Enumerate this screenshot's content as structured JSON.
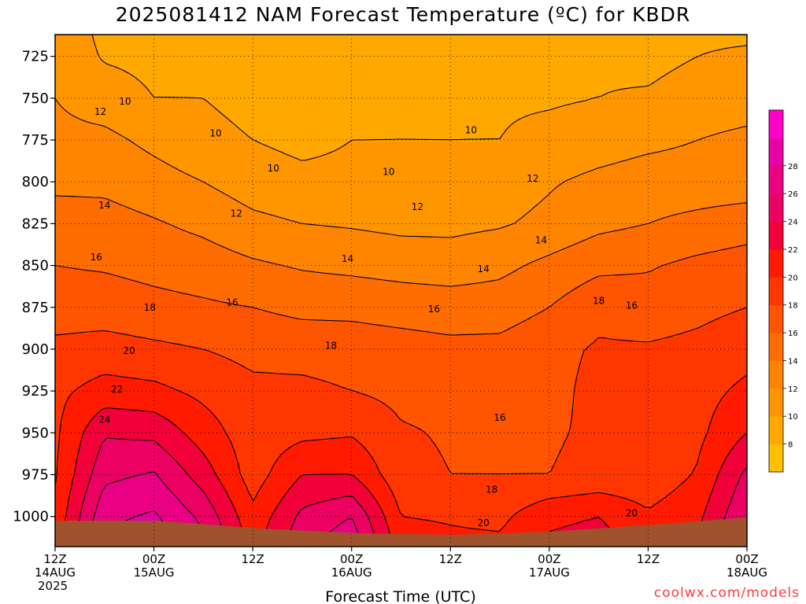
{
  "title": "2025081412 NAM Forecast Temperature (ºC) for KBDR",
  "credit": "coolwx.com/models",
  "chart_data": {
    "type": "heatmap",
    "title": "2025081412 NAM Forecast Temperature (ºC) for KBDR",
    "xlabel": "Forecast Time (UTC)",
    "ylabel": "",
    "x_ticks": [
      {
        "hour": 0,
        "line1": "12Z",
        "line2": "14AUG",
        "line3": "2025"
      },
      {
        "hour": 12,
        "line1": "00Z",
        "line2": "15AUG",
        "line3": ""
      },
      {
        "hour": 24,
        "line1": "12Z",
        "line2": "",
        "line3": ""
      },
      {
        "hour": 36,
        "line1": "00Z",
        "line2": "16AUG",
        "line3": ""
      },
      {
        "hour": 48,
        "line1": "12Z",
        "line2": "",
        "line3": ""
      },
      {
        "hour": 60,
        "line1": "00Z",
        "line2": "17AUG",
        "line3": ""
      },
      {
        "hour": 72,
        "line1": "12Z",
        "line2": "",
        "line3": ""
      },
      {
        "hour": 84,
        "line1": "00Z",
        "line2": "18AUG",
        "line3": ""
      }
    ],
    "xlim_hours": [
      0,
      84
    ],
    "y_ticks": [
      725,
      750,
      775,
      800,
      825,
      850,
      875,
      900,
      925,
      950,
      975,
      1000
    ],
    "ylim_hpa": [
      712,
      1018
    ],
    "grid": true,
    "contour_interval": 2,
    "colorbar_ticks": [
      8,
      10,
      12,
      14,
      16,
      18,
      20,
      22,
      24,
      26,
      28
    ],
    "colorbar_colors": [
      "#ffc000",
      "#ffa800",
      "#ff9600",
      "#ff8400",
      "#ff6c00",
      "#ff5400",
      "#ff3600",
      "#ff1a00",
      "#f2003a",
      "#ec0062",
      "#ea0082",
      "#e800a4",
      "#ff00c8"
    ],
    "temperature_grid": {
      "hours": [
        0,
        6,
        12,
        18,
        24,
        30,
        36,
        42,
        48,
        54,
        60,
        66,
        72,
        78,
        84
      ],
      "levels_hpa": [
        712,
        725,
        750,
        775,
        800,
        825,
        850,
        875,
        900,
        925,
        950,
        975,
        1000,
        1018
      ],
      "values_c": [
        [
          11.5,
          9.5,
          9.5,
          9.5,
          9.0,
          9.0,
          9.5,
          9.5,
          9.5,
          9.5,
          9.5,
          9.5,
          9.0,
          9.5,
          9.5
        ],
        [
          11.5,
          9.8,
          9.5,
          9.5,
          9.0,
          9.0,
          9.5,
          9.5,
          9.5,
          9.5,
          9.5,
          9.8,
          9.5,
          10.0,
          10.5
        ],
        [
          12.0,
          11.0,
          10.0,
          10.0,
          9.5,
          9.5,
          9.5,
          9.8,
          9.6,
          9.8,
          9.8,
          10.0,
          10.2,
          10.8,
          11.0
        ],
        [
          12.5,
          12.5,
          11.5,
          10.5,
          10.0,
          9.5,
          10.0,
          10.0,
          10.0,
          10.0,
          10.5,
          11.0,
          11.5,
          12.0,
          12.5
        ],
        [
          13.5,
          13.5,
          12.8,
          12.0,
          11.0,
          10.5,
          10.5,
          10.5,
          10.5,
          11.0,
          11.8,
          12.5,
          13.0,
          13.0,
          13.0
        ],
        [
          15.0,
          14.8,
          14.2,
          13.5,
          12.5,
          12.0,
          11.8,
          11.5,
          11.5,
          11.8,
          12.5,
          13.5,
          14.0,
          14.5,
          15.0
        ],
        [
          16.0,
          15.8,
          15.4,
          15.0,
          14.3,
          13.8,
          13.5,
          13.2,
          13.0,
          13.5,
          14.5,
          15.5,
          15.8,
          16.5,
          17.0
        ],
        [
          17.0,
          17.0,
          16.6,
          16.3,
          16.0,
          15.5,
          15.5,
          15.2,
          15.0,
          15.0,
          16.0,
          17.5,
          17.0,
          17.5,
          18.0
        ],
        [
          18.5,
          18.8,
          18.4,
          18.0,
          17.4,
          17.2,
          17.0,
          16.8,
          16.5,
          16.6,
          17.5,
          18.2,
          18.2,
          18.5,
          19.2
        ],
        [
          19.5,
          20.8,
          20.5,
          19.5,
          18.5,
          18.5,
          18.0,
          17.5,
          17.5,
          16.2,
          17.5,
          18.5,
          18.5,
          19.2,
          20.5
        ],
        [
          19.6,
          23.8,
          23.5,
          21.0,
          18.8,
          19.5,
          19.8,
          18.2,
          17.8,
          17.5,
          17.8,
          18.3,
          18.3,
          19.5,
          22.0
        ],
        [
          19.8,
          25.5,
          26.2,
          23.0,
          19.0,
          22.0,
          22.0,
          18.6,
          18.0,
          18.0,
          18.0,
          18.5,
          18.6,
          20.2,
          24.5
        ],
        [
          20.5,
          27.5,
          28.3,
          25.5,
          20.5,
          24.5,
          26.0,
          20.0,
          19.8,
          19.5,
          21.5,
          22.0,
          20.3,
          21.5,
          26.0
        ],
        [
          21.0,
          28.5,
          29.5,
          26.5,
          21.5,
          25.5,
          27.5,
          21.0,
          20.5,
          20.5,
          22.5,
          23.0,
          21.0,
          22.0,
          27.0
        ]
      ]
    },
    "contour_labels": [
      {
        "text": "10",
        "hour": 8.5,
        "hpa": 752
      },
      {
        "text": "10",
        "hour": 19.5,
        "hpa": 771
      },
      {
        "text": "10",
        "hour": 26.5,
        "hpa": 792
      },
      {
        "text": "10",
        "hour": 40.5,
        "hpa": 794
      },
      {
        "text": "10",
        "hour": 50.5,
        "hpa": 769
      },
      {
        "text": "12",
        "hour": 5.5,
        "hpa": 758
      },
      {
        "text": "12",
        "hour": 22,
        "hpa": 819
      },
      {
        "text": "12",
        "hour": 44,
        "hpa": 815
      },
      {
        "text": "12",
        "hour": 58,
        "hpa": 798
      },
      {
        "text": "14",
        "hour": 6,
        "hpa": 814
      },
      {
        "text": "14",
        "hour": 35.5,
        "hpa": 846
      },
      {
        "text": "14",
        "hour": 52,
        "hpa": 852
      },
      {
        "text": "14",
        "hour": 59,
        "hpa": 835
      },
      {
        "text": "16",
        "hour": 5,
        "hpa": 845
      },
      {
        "text": "16",
        "hour": 21.5,
        "hpa": 872
      },
      {
        "text": "16",
        "hour": 46,
        "hpa": 876
      },
      {
        "text": "16",
        "hour": 70,
        "hpa": 874
      },
      {
        "text": "16",
        "hour": 54,
        "hpa": 941
      },
      {
        "text": "18",
        "hour": 11.5,
        "hpa": 875
      },
      {
        "text": "18",
        "hour": 33.5,
        "hpa": 898
      },
      {
        "text": "18",
        "hour": 53,
        "hpa": 984
      },
      {
        "text": "18",
        "hour": 66,
        "hpa": 871
      },
      {
        "text": "20",
        "hour": 9,
        "hpa": 901
      },
      {
        "text": "20",
        "hour": 52,
        "hpa": 1004
      },
      {
        "text": "20",
        "hour": 70,
        "hpa": 998
      },
      {
        "text": "22",
        "hour": 7.5,
        "hpa": 924
      },
      {
        "text": "24",
        "hour": 6,
        "hpa": 942
      }
    ],
    "terrain_color": "#a0522d",
    "grid_color": "#000000"
  }
}
